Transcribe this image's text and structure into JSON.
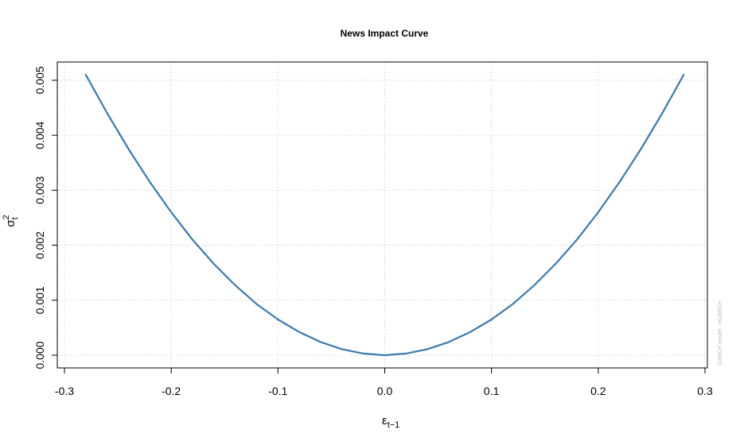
{
  "chart_data": {
    "type": "line",
    "title": "News Impact Curve",
    "xlabel": {
      "main": "ε",
      "sub": "t−1"
    },
    "ylabel": {
      "main": "σ",
      "sup": "2",
      "sub": "t"
    },
    "xlim": [
      -0.3,
      0.3
    ],
    "ylim": [
      0,
      0.005
    ],
    "x_ticks": [
      -0.3,
      -0.2,
      -0.1,
      0.0,
      0.1,
      0.2,
      0.3
    ],
    "x_tick_labels": [
      "-0.3",
      "-0.2",
      "-0.1",
      "0.0",
      "0.1",
      "0.2",
      "0.3"
    ],
    "y_ticks": [
      0,
      0.001,
      0.002,
      0.003,
      0.004,
      0.005
    ],
    "y_tick_labels": [
      "0.000",
      "0.001",
      "0.002",
      "0.003",
      "0.004",
      "0.005"
    ],
    "grid": true,
    "series": [
      {
        "color": "#3a7ab0",
        "x": [
          -0.28,
          -0.26,
          -0.24,
          -0.22,
          -0.2,
          -0.18,
          -0.16,
          -0.14,
          -0.12,
          -0.1,
          -0.08,
          -0.06,
          -0.04,
          -0.02,
          0.0,
          0.02,
          0.04,
          0.06,
          0.08,
          0.1,
          0.12,
          0.14,
          0.16,
          0.18,
          0.2,
          0.22,
          0.24,
          0.26,
          0.28
        ],
        "y": [
          0.0051,
          0.0044,
          0.00375,
          0.00315,
          0.0026,
          0.0021,
          0.00166,
          0.00127,
          0.00093,
          0.00065,
          0.00042,
          0.00024,
          0.00011,
          3e-05,
          0.0,
          3e-05,
          0.00011,
          0.00024,
          0.00042,
          0.00065,
          0.00093,
          0.00127,
          0.00166,
          0.0021,
          0.0026,
          0.00315,
          0.00375,
          0.0044,
          0.0051
        ]
      }
    ],
    "watermark": "GARCH model : eGARCH"
  }
}
